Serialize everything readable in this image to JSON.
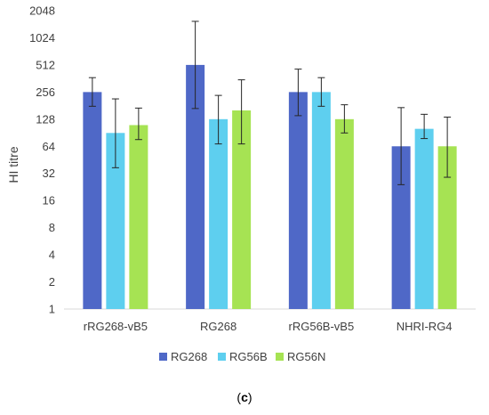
{
  "chart_data": {
    "type": "bar",
    "title": "",
    "xlabel": "",
    "ylabel": "HI titre",
    "yscale": "log2",
    "ylim": [
      1,
      2048
    ],
    "yticks": [
      "1",
      "2",
      "4",
      "8",
      "16",
      "32",
      "64",
      "128",
      "256",
      "512",
      "1024",
      "2048"
    ],
    "grid": false,
    "legend_position": "bottom",
    "categories": [
      "rRG268-vB5",
      "RG268",
      "rRG56B-vB5",
      "NHRI-RG4"
    ],
    "series": [
      {
        "name": "RG268",
        "color": "#4f68c7",
        "values": [
          256,
          512,
          256,
          64
        ],
        "error_low": [
          178,
          168,
          140,
          24
        ],
        "error_high": [
          370,
          1560,
          460,
          172
        ]
      },
      {
        "name": "RG56B",
        "color": "#5ecfef",
        "values": [
          90,
          128,
          256,
          100
        ],
        "error_low": [
          37,
          68,
          178,
          78
        ],
        "error_high": [
          215,
          235,
          370,
          145
        ]
      },
      {
        "name": "RG56N",
        "color": "#a6e353",
        "values": [
          110,
          160,
          128,
          64
        ],
        "error_low": [
          76,
          68,
          90,
          29
        ],
        "error_high": [
          170,
          350,
          185,
          135
        ]
      }
    ]
  },
  "panel_label": {
    "open": "(",
    "letter": "c",
    "close": ")"
  }
}
